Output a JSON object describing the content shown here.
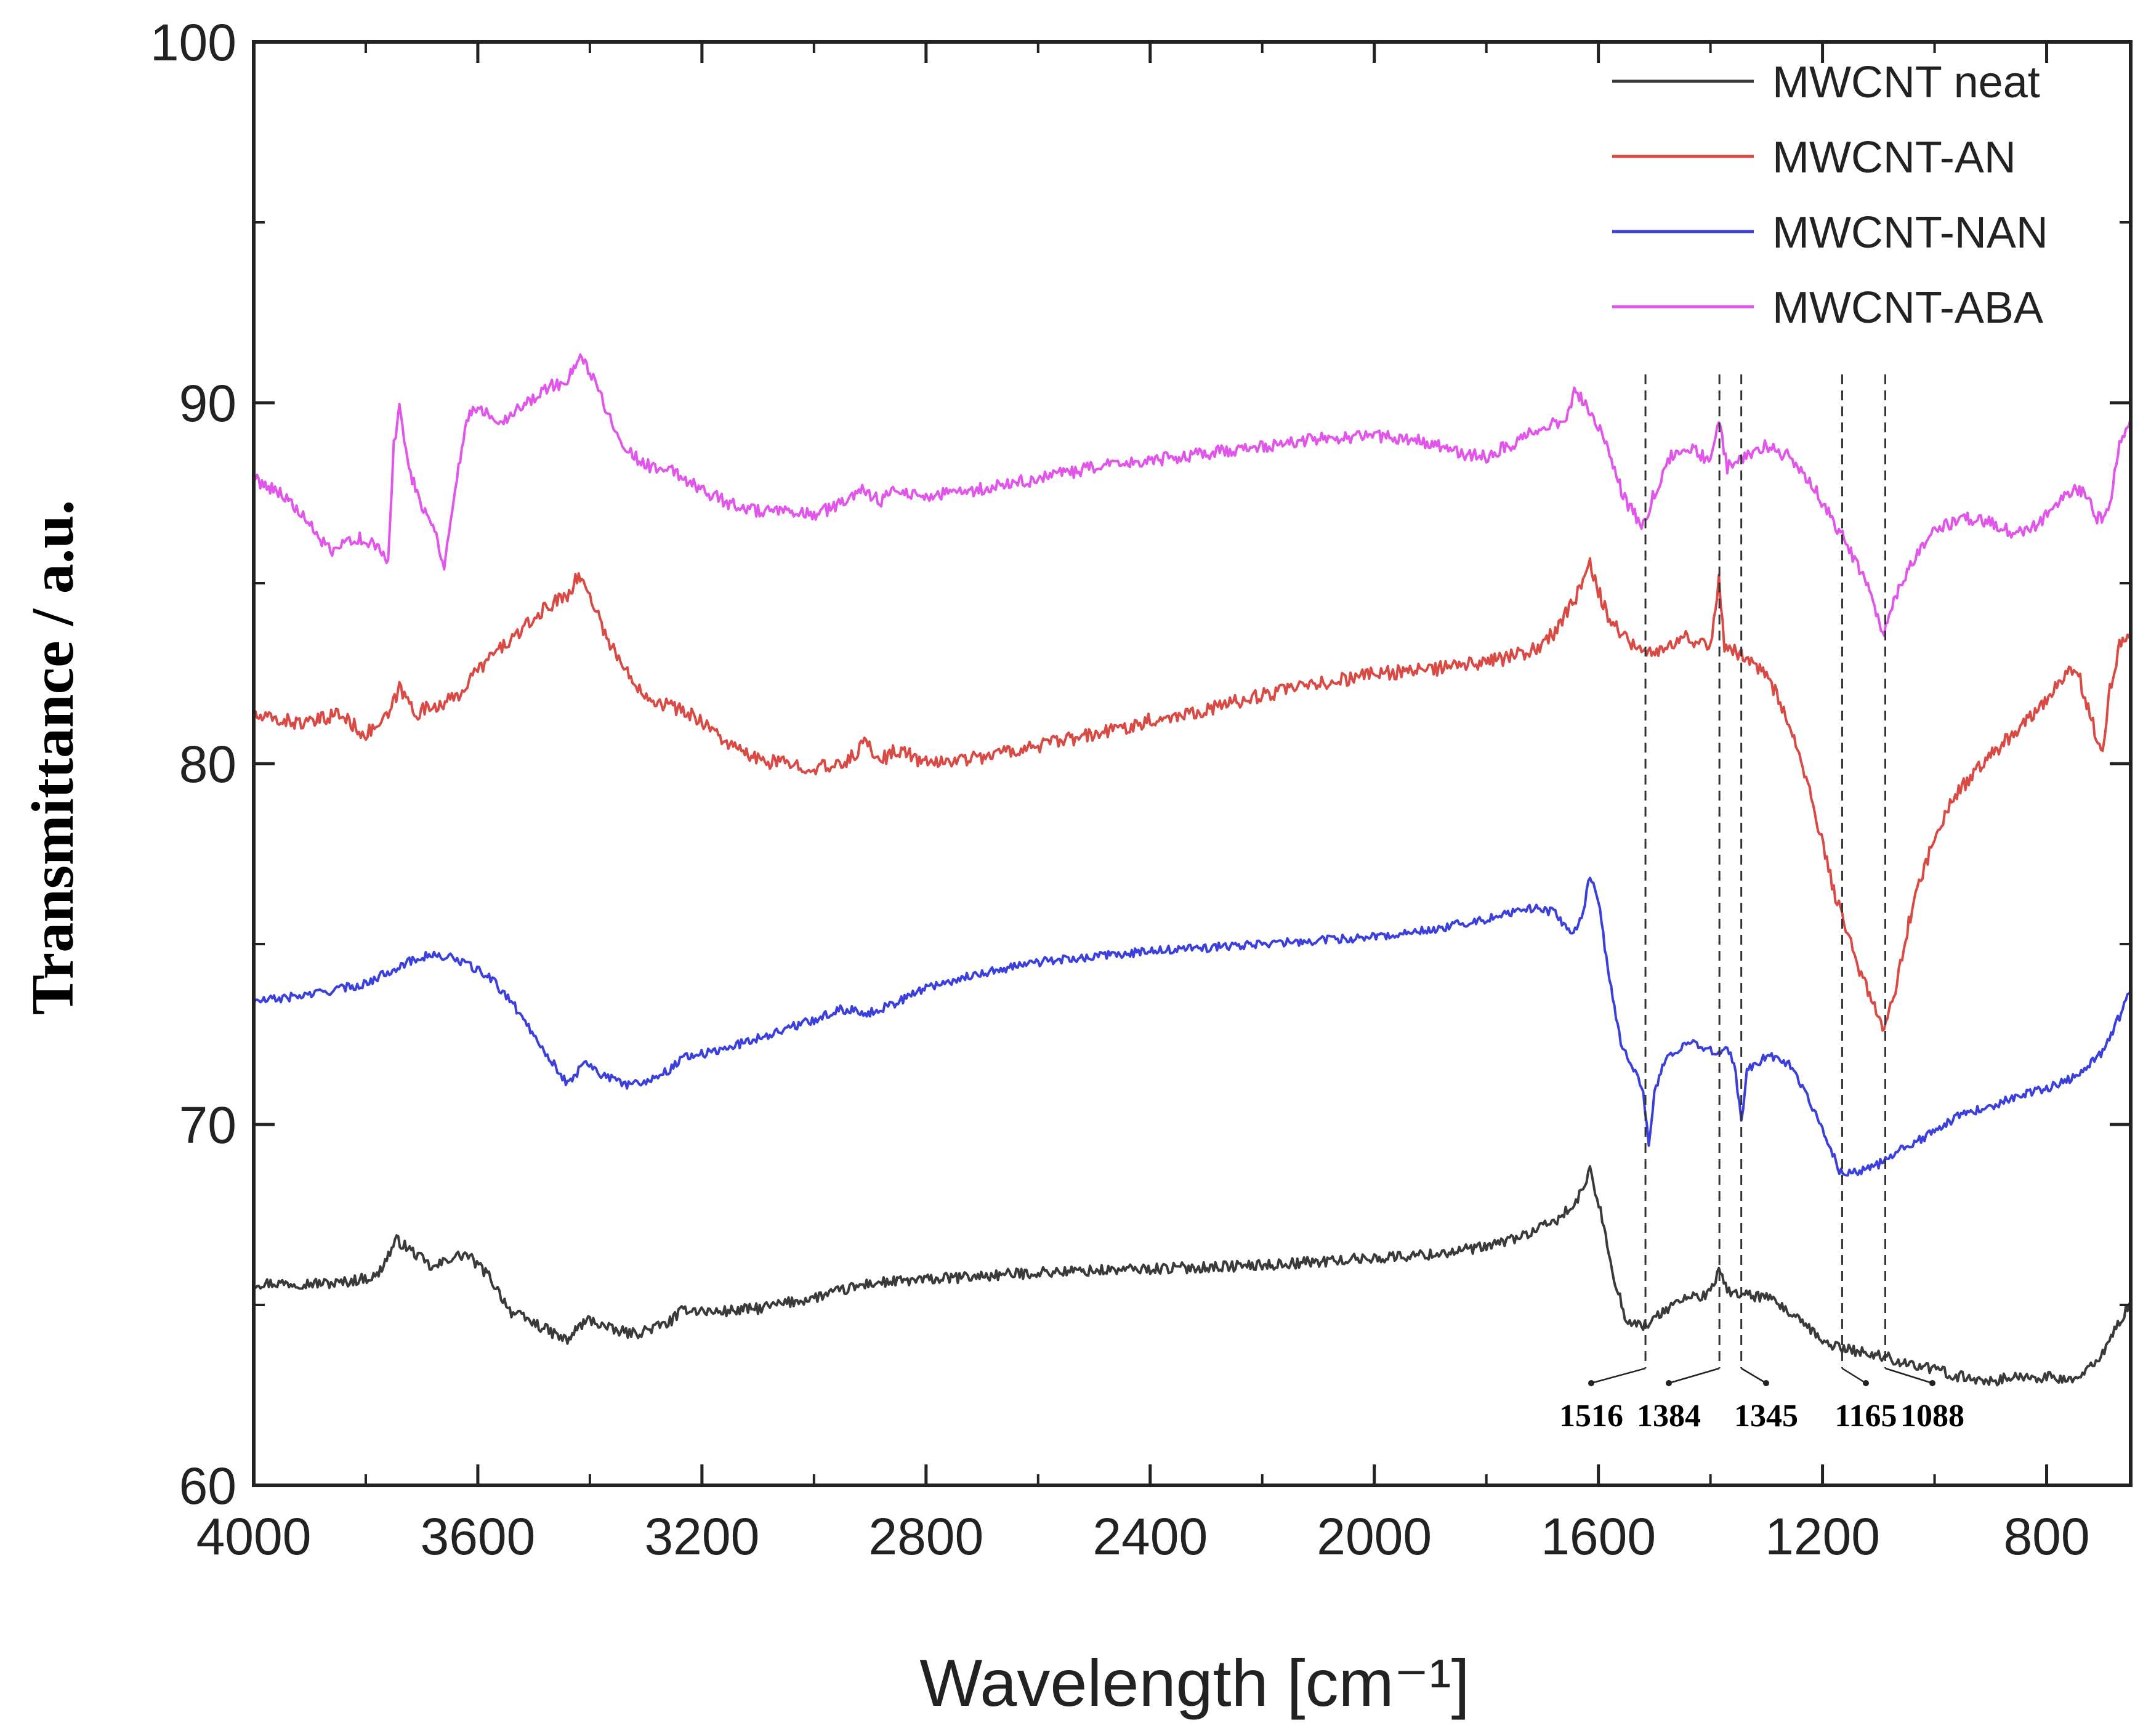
{
  "chart_data": {
    "type": "line",
    "title": "",
    "xlabel": "Wavelength [cm⁻¹]",
    "ylabel": "Transmittance / a.u.",
    "xlim": [
      4000,
      650
    ],
    "ylim": [
      60,
      100
    ],
    "x_ticks": [
      4000,
      3600,
      3200,
      2800,
      2400,
      2000,
      1600,
      1200,
      800
    ],
    "x_tick_labels": [
      "4000",
      "3600",
      "3200",
      "2800",
      "2400",
      "2000",
      "1600",
      "1200",
      "800"
    ],
    "y_ticks": [
      60,
      70,
      80,
      90,
      100
    ],
    "y_tick_labels": [
      "60",
      "70",
      "80",
      "90",
      "100"
    ],
    "grid": false,
    "legend_position": "top-right",
    "series": [
      {
        "name": "MWCNT neat",
        "color": "#3a3a3a",
        "noise": 0.15,
        "points": [
          [
            4000,
            65.6
          ],
          [
            3850,
            65.6
          ],
          [
            3780,
            65.8
          ],
          [
            3745,
            66.8
          ],
          [
            3710,
            66.4
          ],
          [
            3680,
            66.0
          ],
          [
            3650,
            66.3
          ],
          [
            3620,
            66.4
          ],
          [
            3580,
            65.8
          ],
          [
            3540,
            64.8
          ],
          [
            3500,
            64.5
          ],
          [
            3440,
            64.0
          ],
          [
            3420,
            64.4
          ],
          [
            3400,
            64.6
          ],
          [
            3360,
            64.3
          ],
          [
            3320,
            64.2
          ],
          [
            3260,
            64.5
          ],
          [
            3230,
            64.9
          ],
          [
            3180,
            64.8
          ],
          [
            3100,
            64.9
          ],
          [
            3000,
            65.2
          ],
          [
            2900,
            65.6
          ],
          [
            2800,
            65.7
          ],
          [
            2600,
            65.9
          ],
          [
            2400,
            66.0
          ],
          [
            2200,
            66.1
          ],
          [
            2000,
            66.3
          ],
          [
            1900,
            66.4
          ],
          [
            1800,
            66.6
          ],
          [
            1720,
            67.0
          ],
          [
            1680,
            67.3
          ],
          [
            1640,
            67.8
          ],
          [
            1615,
            68.7
          ],
          [
            1590,
            67.2
          ],
          [
            1570,
            65.6
          ],
          [
            1550,
            64.6
          ],
          [
            1520,
            64.4
          ],
          [
            1500,
            64.6
          ],
          [
            1470,
            65.0
          ],
          [
            1440,
            65.2
          ],
          [
            1400,
            65.3
          ],
          [
            1385,
            66.0
          ],
          [
            1370,
            65.4
          ],
          [
            1345,
            65.3
          ],
          [
            1300,
            65.2
          ],
          [
            1260,
            64.8
          ],
          [
            1200,
            64.0
          ],
          [
            1165,
            63.8
          ],
          [
            1100,
            63.6
          ],
          [
            1050,
            63.4
          ],
          [
            1000,
            63.2
          ],
          [
            950,
            63.0
          ],
          [
            900,
            62.9
          ],
          [
            850,
            63.0
          ],
          [
            800,
            63.0
          ],
          [
            760,
            62.9
          ],
          [
            730,
            63.1
          ],
          [
            700,
            63.7
          ],
          [
            670,
            64.5
          ],
          [
            650,
            65.1
          ]
        ]
      },
      {
        "name": "MWCNT-AN",
        "color": "#d94a45",
        "noise": 0.2,
        "points": [
          [
            4000,
            81.3
          ],
          [
            3900,
            81.1
          ],
          [
            3850,
            81.4
          ],
          [
            3800,
            80.8
          ],
          [
            3760,
            81.3
          ],
          [
            3740,
            82.1
          ],
          [
            3710,
            81.4
          ],
          [
            3680,
            81.6
          ],
          [
            3640,
            81.8
          ],
          [
            3600,
            82.6
          ],
          [
            3560,
            83.2
          ],
          [
            3520,
            83.7
          ],
          [
            3480,
            84.3
          ],
          [
            3440,
            84.7
          ],
          [
            3420,
            85.2
          ],
          [
            3400,
            84.7
          ],
          [
            3370,
            83.5
          ],
          [
            3330,
            82.4
          ],
          [
            3290,
            81.8
          ],
          [
            3240,
            81.5
          ],
          [
            3200,
            81.2
          ],
          [
            3150,
            80.5
          ],
          [
            3100,
            80.1
          ],
          [
            3000,
            79.9
          ],
          [
            2960,
            79.9
          ],
          [
            2930,
            80.2
          ],
          [
            2910,
            80.6
          ],
          [
            2880,
            80.1
          ],
          [
            2850,
            80.4
          ],
          [
            2800,
            80.0
          ],
          [
            2700,
            80.2
          ],
          [
            2600,
            80.5
          ],
          [
            2500,
            80.8
          ],
          [
            2400,
            81.2
          ],
          [
            2300,
            81.5
          ],
          [
            2200,
            81.9
          ],
          [
            2100,
            82.2
          ],
          [
            2000,
            82.5
          ],
          [
            1900,
            82.6
          ],
          [
            1800,
            82.8
          ],
          [
            1720,
            83.1
          ],
          [
            1680,
            83.6
          ],
          [
            1640,
            84.6
          ],
          [
            1615,
            85.5
          ],
          [
            1600,
            84.8
          ],
          [
            1580,
            84.0
          ],
          [
            1550,
            83.5
          ],
          [
            1520,
            83.0
          ],
          [
            1490,
            83.2
          ],
          [
            1450,
            83.5
          ],
          [
            1400,
            83.3
          ],
          [
            1385,
            85.1
          ],
          [
            1375,
            83.3
          ],
          [
            1345,
            83.0
          ],
          [
            1300,
            82.5
          ],
          [
            1260,
            81.2
          ],
          [
            1220,
            79.0
          ],
          [
            1180,
            76.5
          ],
          [
            1140,
            74.5
          ],
          [
            1110,
            73.3
          ],
          [
            1090,
            72.6
          ],
          [
            1070,
            73.8
          ],
          [
            1040,
            76.0
          ],
          [
            1000,
            78.0
          ],
          [
            960,
            79.2
          ],
          [
            900,
            80.2
          ],
          [
            850,
            81.0
          ],
          [
            800,
            81.8
          ],
          [
            760,
            82.6
          ],
          [
            740,
            82.3
          ],
          [
            720,
            81.2
          ],
          [
            700,
            80.3
          ],
          [
            690,
            81.8
          ],
          [
            670,
            83.3
          ],
          [
            650,
            83.7
          ]
        ]
      },
      {
        "name": "MWCNT-NAN",
        "color": "#3b3fdb",
        "noise": 0.12,
        "points": [
          [
            4000,
            73.4
          ],
          [
            3900,
            73.6
          ],
          [
            3800,
            73.9
          ],
          [
            3740,
            74.4
          ],
          [
            3690,
            74.7
          ],
          [
            3640,
            74.6
          ],
          [
            3580,
            74.1
          ],
          [
            3540,
            73.4
          ],
          [
            3500,
            72.5
          ],
          [
            3470,
            71.8
          ],
          [
            3440,
            71.1
          ],
          [
            3420,
            71.5
          ],
          [
            3410,
            71.8
          ],
          [
            3380,
            71.4
          ],
          [
            3340,
            71.1
          ],
          [
            3300,
            71.2
          ],
          [
            3260,
            71.5
          ],
          [
            3230,
            71.9
          ],
          [
            3180,
            72.0
          ],
          [
            3100,
            72.4
          ],
          [
            3000,
            72.9
          ],
          [
            2950,
            73.2
          ],
          [
            2900,
            73.1
          ],
          [
            2850,
            73.4
          ],
          [
            2800,
            73.8
          ],
          [
            2700,
            74.2
          ],
          [
            2600,
            74.5
          ],
          [
            2400,
            74.8
          ],
          [
            2200,
            75.0
          ],
          [
            2000,
            75.2
          ],
          [
            1900,
            75.4
          ],
          [
            1800,
            75.7
          ],
          [
            1720,
            76.0
          ],
          [
            1680,
            75.9
          ],
          [
            1650,
            75.3
          ],
          [
            1630,
            75.7
          ],
          [
            1615,
            76.9
          ],
          [
            1600,
            76.2
          ],
          [
            1580,
            74.0
          ],
          [
            1560,
            72.3
          ],
          [
            1540,
            71.6
          ],
          [
            1520,
            70.9
          ],
          [
            1510,
            69.4
          ],
          [
            1500,
            70.9
          ],
          [
            1480,
            71.8
          ],
          [
            1440,
            72.3
          ],
          [
            1400,
            72.1
          ],
          [
            1385,
            71.9
          ],
          [
            1370,
            72.2
          ],
          [
            1355,
            71.5
          ],
          [
            1345,
            70.0
          ],
          [
            1335,
            71.5
          ],
          [
            1300,
            71.9
          ],
          [
            1260,
            71.7
          ],
          [
            1230,
            70.9
          ],
          [
            1200,
            69.9
          ],
          [
            1170,
            68.7
          ],
          [
            1140,
            68.7
          ],
          [
            1100,
            68.9
          ],
          [
            1060,
            69.3
          ],
          [
            1000,
            69.8
          ],
          [
            950,
            70.3
          ],
          [
            900,
            70.5
          ],
          [
            850,
            70.8
          ],
          [
            800,
            71.0
          ],
          [
            750,
            71.3
          ],
          [
            700,
            72.0
          ],
          [
            670,
            73.0
          ],
          [
            650,
            73.7
          ]
        ]
      },
      {
        "name": "MWCNT-ABA",
        "color": "#e255ea",
        "noise": 0.18,
        "points": [
          [
            4000,
            87.9
          ],
          [
            3950,
            87.5
          ],
          [
            3900,
            86.6
          ],
          [
            3860,
            85.8
          ],
          [
            3820,
            86.3
          ],
          [
            3780,
            86.0
          ],
          [
            3760,
            85.6
          ],
          [
            3750,
            88.8
          ],
          [
            3740,
            89.9
          ],
          [
            3720,
            88.0
          ],
          [
            3700,
            87.2
          ],
          [
            3680,
            86.6
          ],
          [
            3660,
            85.5
          ],
          [
            3640,
            87.6
          ],
          [
            3620,
            89.6
          ],
          [
            3600,
            89.9
          ],
          [
            3560,
            89.5
          ],
          [
            3520,
            89.9
          ],
          [
            3480,
            90.4
          ],
          [
            3440,
            90.6
          ],
          [
            3420,
            91.2
          ],
          [
            3400,
            90.9
          ],
          [
            3370,
            89.8
          ],
          [
            3330,
            88.6
          ],
          [
            3290,
            88.2
          ],
          [
            3250,
            88.1
          ],
          [
            3200,
            87.6
          ],
          [
            3150,
            87.2
          ],
          [
            3100,
            87.0
          ],
          [
            3000,
            86.9
          ],
          [
            2950,
            87.2
          ],
          [
            2920,
            87.6
          ],
          [
            2880,
            87.3
          ],
          [
            2850,
            87.6
          ],
          [
            2800,
            87.4
          ],
          [
            2700,
            87.6
          ],
          [
            2600,
            87.9
          ],
          [
            2500,
            88.2
          ],
          [
            2400,
            88.4
          ],
          [
            2300,
            88.6
          ],
          [
            2200,
            88.8
          ],
          [
            2100,
            89.0
          ],
          [
            2000,
            89.1
          ],
          [
            1900,
            88.9
          ],
          [
            1850,
            88.6
          ],
          [
            1800,
            88.5
          ],
          [
            1750,
            88.9
          ],
          [
            1700,
            89.3
          ],
          [
            1660,
            89.5
          ],
          [
            1640,
            90.4
          ],
          [
            1620,
            89.8
          ],
          [
            1600,
            89.4
          ],
          [
            1580,
            88.5
          ],
          [
            1550,
            87.2
          ],
          [
            1520,
            86.6
          ],
          [
            1500,
            87.5
          ],
          [
            1470,
            88.5
          ],
          [
            1450,
            88.8
          ],
          [
            1420,
            88.6
          ],
          [
            1400,
            88.3
          ],
          [
            1385,
            89.5
          ],
          [
            1370,
            88.2
          ],
          [
            1345,
            88.5
          ],
          [
            1300,
            88.8
          ],
          [
            1260,
            88.5
          ],
          [
            1220,
            87.8
          ],
          [
            1180,
            86.7
          ],
          [
            1140,
            85.6
          ],
          [
            1110,
            84.5
          ],
          [
            1090,
            83.6
          ],
          [
            1070,
            84.6
          ],
          [
            1040,
            85.6
          ],
          [
            1000,
            86.5
          ],
          [
            950,
            86.8
          ],
          [
            900,
            86.7
          ],
          [
            860,
            86.4
          ],
          [
            820,
            86.6
          ],
          [
            780,
            87.2
          ],
          [
            750,
            87.6
          ],
          [
            730,
            87.5
          ],
          [
            710,
            86.8
          ],
          [
            690,
            86.9
          ],
          [
            670,
            88.8
          ],
          [
            650,
            89.6
          ]
        ]
      }
    ],
    "peak_annotations": [
      {
        "label": "1516",
        "x": 1516
      },
      {
        "label": "1384",
        "x": 1384
      },
      {
        "label": "1345",
        "x": 1345
      },
      {
        "label": "1165",
        "x": 1165
      },
      {
        "label": "1088",
        "x": 1088
      }
    ]
  }
}
